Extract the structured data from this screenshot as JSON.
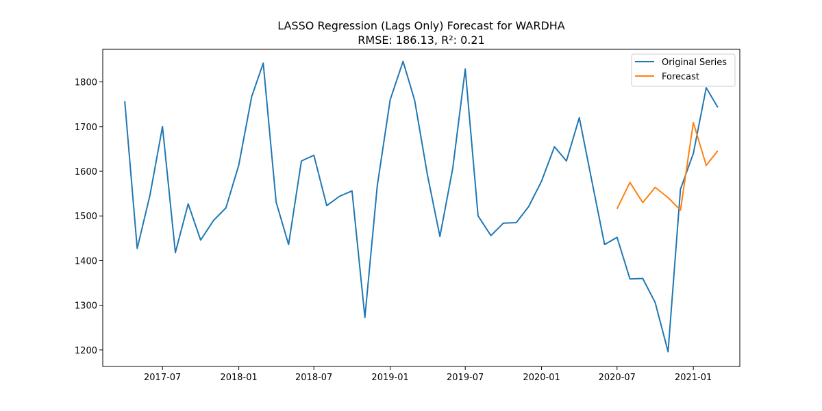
{
  "chart_data": {
    "type": "line",
    "title": "LASSO Regression (Lags Only) Forecast for WARDHA",
    "subtitle": "RMSE: 186.13, R²: 0.21",
    "xlabel": "",
    "ylabel": "",
    "xlim": [
      "2017-02-07",
      "2021-04-23"
    ],
    "ylim": [
      1163,
      1873
    ],
    "grid": false,
    "legend_position": "top-right",
    "x_ticks": [
      "2017-07",
      "2018-01",
      "2018-07",
      "2019-01",
      "2019-07",
      "2020-01",
      "2020-07",
      "2021-01"
    ],
    "y_ticks": [
      1200,
      1300,
      1400,
      1500,
      1600,
      1700,
      1800
    ],
    "series": [
      {
        "name": "Original Series",
        "color": "#1f77b4",
        "x": [
          "2017-04-01",
          "2017-05-01",
          "2017-06-01",
          "2017-07-01",
          "2017-08-01",
          "2017-09-01",
          "2017-10-01",
          "2017-11-01",
          "2017-12-01",
          "2018-01-01",
          "2018-02-01",
          "2018-03-01",
          "2018-04-01",
          "2018-05-01",
          "2018-06-01",
          "2018-07-01",
          "2018-08-01",
          "2018-09-01",
          "2018-10-01",
          "2018-11-01",
          "2018-12-01",
          "2019-01-01",
          "2019-02-01",
          "2019-03-01",
          "2019-04-01",
          "2019-05-01",
          "2019-06-01",
          "2019-07-01",
          "2019-08-01",
          "2019-09-01",
          "2019-10-01",
          "2019-11-01",
          "2019-12-01",
          "2020-01-01",
          "2020-02-01",
          "2020-03-01",
          "2020-04-01",
          "2020-05-01",
          "2020-06-01",
          "2020-07-01",
          "2020-08-01",
          "2020-09-01",
          "2020-10-01",
          "2020-11-01",
          "2020-12-01",
          "2021-01-01",
          "2021-02-01",
          "2021-03-01"
        ],
        "values": [
          1757,
          1427,
          1547,
          1700,
          1418,
          1527,
          1446,
          1490,
          1518,
          1614,
          1767,
          1842,
          1531,
          1436,
          1623,
          1636,
          1523,
          1544,
          1556,
          1273,
          1568,
          1760,
          1846,
          1759,
          1591,
          1454,
          1607,
          1829,
          1500,
          1456,
          1484,
          1485,
          1521,
          1578,
          1655,
          1623,
          1720,
          1580,
          1436,
          1452,
          1359,
          1360,
          1306,
          1196,
          1560,
          1640,
          1787,
          1743
        ]
      },
      {
        "name": "Forecast",
        "color": "#ff7f0e",
        "x": [
          "2020-07-01",
          "2020-08-01",
          "2020-09-01",
          "2020-10-01",
          "2020-11-01",
          "2020-12-01",
          "2021-01-01",
          "2021-02-01",
          "2021-03-01"
        ],
        "values": [
          1516,
          1575,
          1530,
          1564,
          1541,
          1513,
          1709,
          1613,
          1646
        ]
      }
    ]
  }
}
